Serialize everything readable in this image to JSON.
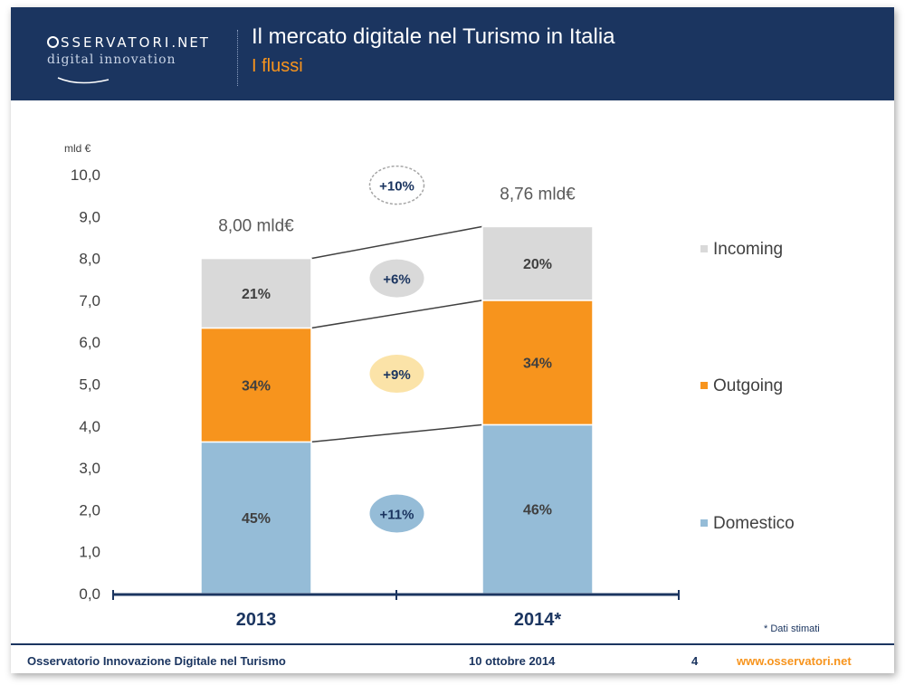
{
  "header": {
    "logo_top_a": "SSERVATORI",
    "logo_top_b": ".NET",
    "logo_bottom": "digital innovation",
    "title": "Il mercato digitale nel Turismo in Italia",
    "subtitle": "I flussi"
  },
  "colors": {
    "header_bg": "#1b3560",
    "accent": "#f7941d",
    "domestico": "#95bcd7",
    "outgoing": "#f7941d",
    "incoming": "#d9d9d9"
  },
  "chart_data": {
    "type": "bar",
    "stacked": true,
    "title": "",
    "ylabel": "mld €",
    "xlabel": "",
    "ylim": [
      0,
      10
    ],
    "yticks": [
      "0,0",
      "1,0",
      "2,0",
      "3,0",
      "4,0",
      "5,0",
      "6,0",
      "7,0",
      "8,0",
      "9,0",
      "10,0"
    ],
    "categories": [
      "2013",
      "2014*"
    ],
    "totals": [
      "8,00 mld€",
      "8,76 mld€"
    ],
    "series": [
      {
        "name": "Domestico",
        "color": "#95bcd7",
        "values": [
          3.62,
          4.03
        ],
        "labels": [
          "45%",
          "46%"
        ],
        "growth": "+11%",
        "bubble": "#95bcd7"
      },
      {
        "name": "Outgoing",
        "color": "#f7941d",
        "values": [
          2.72,
          2.97
        ],
        "labels": [
          "34%",
          "34%"
        ],
        "growth": "+9%",
        "bubble": "#fbe3a8"
      },
      {
        "name": "Incoming",
        "color": "#d9d9d9",
        "values": [
          1.66,
          1.76
        ],
        "labels": [
          "21%",
          "20%"
        ],
        "growth": "+6%",
        "bubble": "#d9d9d9"
      }
    ],
    "total_growth": "+10%",
    "note": "* Dati stimati",
    "legend_position": "right"
  },
  "footer": {
    "left": "Osservatorio Innovazione Digitale nel Turismo",
    "date": "10 ottobre 2014",
    "page": "4",
    "url": "www.osservatori.net"
  }
}
